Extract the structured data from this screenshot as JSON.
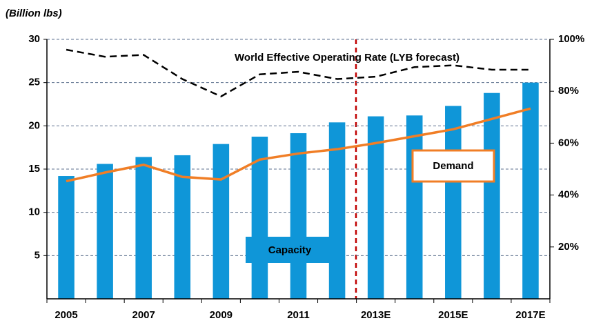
{
  "chart_data": {
    "type": "bar",
    "y_axis_label": "(Billion lbs)",
    "categories": [
      "2005",
      null,
      "2007",
      null,
      "2009",
      null,
      "2011",
      null,
      "2013E",
      null,
      "2015E",
      null,
      "2017E"
    ],
    "series": [
      {
        "name": "Capacity",
        "type": "bar",
        "color": "#0f96d8",
        "values": [
          14.2,
          15.6,
          16.4,
          16.6,
          17.9,
          18.75,
          19.15,
          20.4,
          21.1,
          21.2,
          22.3,
          23.8,
          25.0
        ]
      },
      {
        "name": "Demand",
        "type": "line",
        "color": "#f07e26",
        "values": [
          13.6,
          14.6,
          15.5,
          14.1,
          13.8,
          16.1,
          16.8,
          17.3,
          18.0,
          18.8,
          19.6,
          20.8,
          22.0
        ]
      },
      {
        "name": "World Effective Operating Rate (LYB forecast)",
        "type": "line",
        "axis": "y2",
        "color": "#000000",
        "dashed": true,
        "values": [
          96,
          93.3,
          94,
          84.7,
          78,
          86.5,
          87.5,
          84.7,
          85.6,
          89.3,
          90,
          88.3,
          88.3
        ]
      }
    ],
    "ylim": [
      0,
      30
    ],
    "yticks": [
      5,
      10,
      15,
      20,
      25,
      30
    ],
    "y2lim": [
      0,
      100
    ],
    "y2ticks": [
      {
        "value": 20,
        "label": "20%"
      },
      {
        "value": 40,
        "label": "40%"
      },
      {
        "value": 60,
        "label": "60%"
      },
      {
        "value": 80,
        "label": "80%"
      },
      {
        "value": 100,
        "label": "100%"
      }
    ],
    "grid": true
  }
}
